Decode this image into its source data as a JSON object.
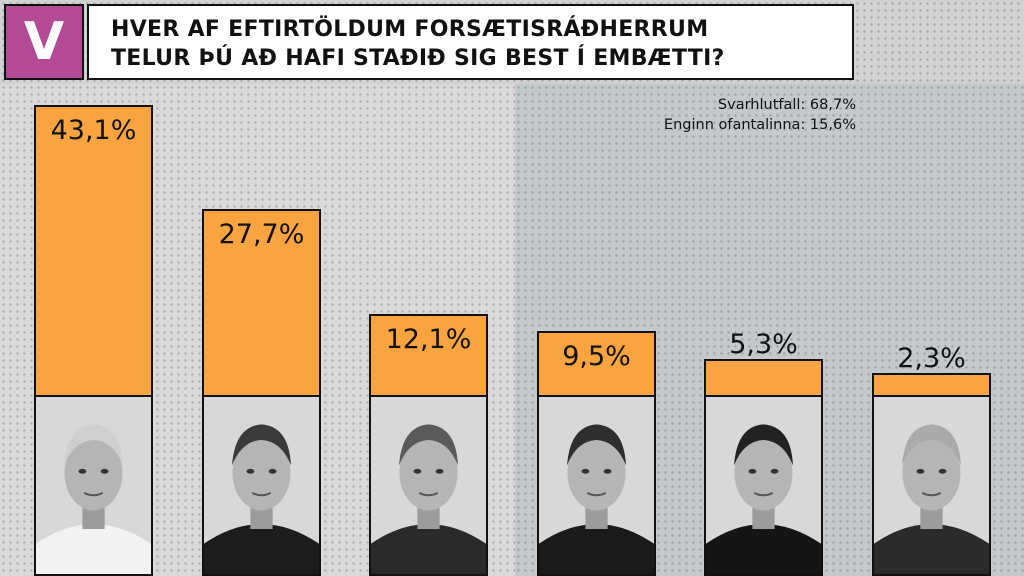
{
  "logo": {
    "text": "V",
    "color": "#b24a96"
  },
  "title": {
    "lines": [
      "HVER AF EFTIRTÖLDUM FORSÆTISRÁÐHERRUM",
      "TELUR ÞÚ AÐ HAFI STAÐIÐ SIG BEST Í EMBÆTTI?"
    ]
  },
  "notes": [
    "Svarhlutfall: 68,7%",
    "Enginn ofantalinna: 15,6%"
  ],
  "chart_data": {
    "type": "bar",
    "title": "HVER AF EFTIRTÖLDUM FORSÆTISRÁÐHERRUM TELUR ÞÚ AÐ HAFI STAÐIÐ SIG BEST Í EMBÆTTI?",
    "values": [
      43.1,
      27.7,
      12.1,
      9.5,
      5.3,
      2.3
    ],
    "labels": [
      "43,1%",
      "27,7%",
      "12,1%",
      "9,5%",
      "5,3%",
      "2,3%"
    ],
    "ylim": [
      0,
      50
    ],
    "bar_color": "#f9a441",
    "grid": false,
    "legend": "none"
  },
  "photos": [
    {
      "icon": "portrait-photo-1"
    },
    {
      "icon": "portrait-photo-2"
    },
    {
      "icon": "portrait-photo-3"
    },
    {
      "icon": "portrait-photo-4"
    },
    {
      "icon": "portrait-photo-5"
    },
    {
      "icon": "portrait-photo-6"
    }
  ]
}
